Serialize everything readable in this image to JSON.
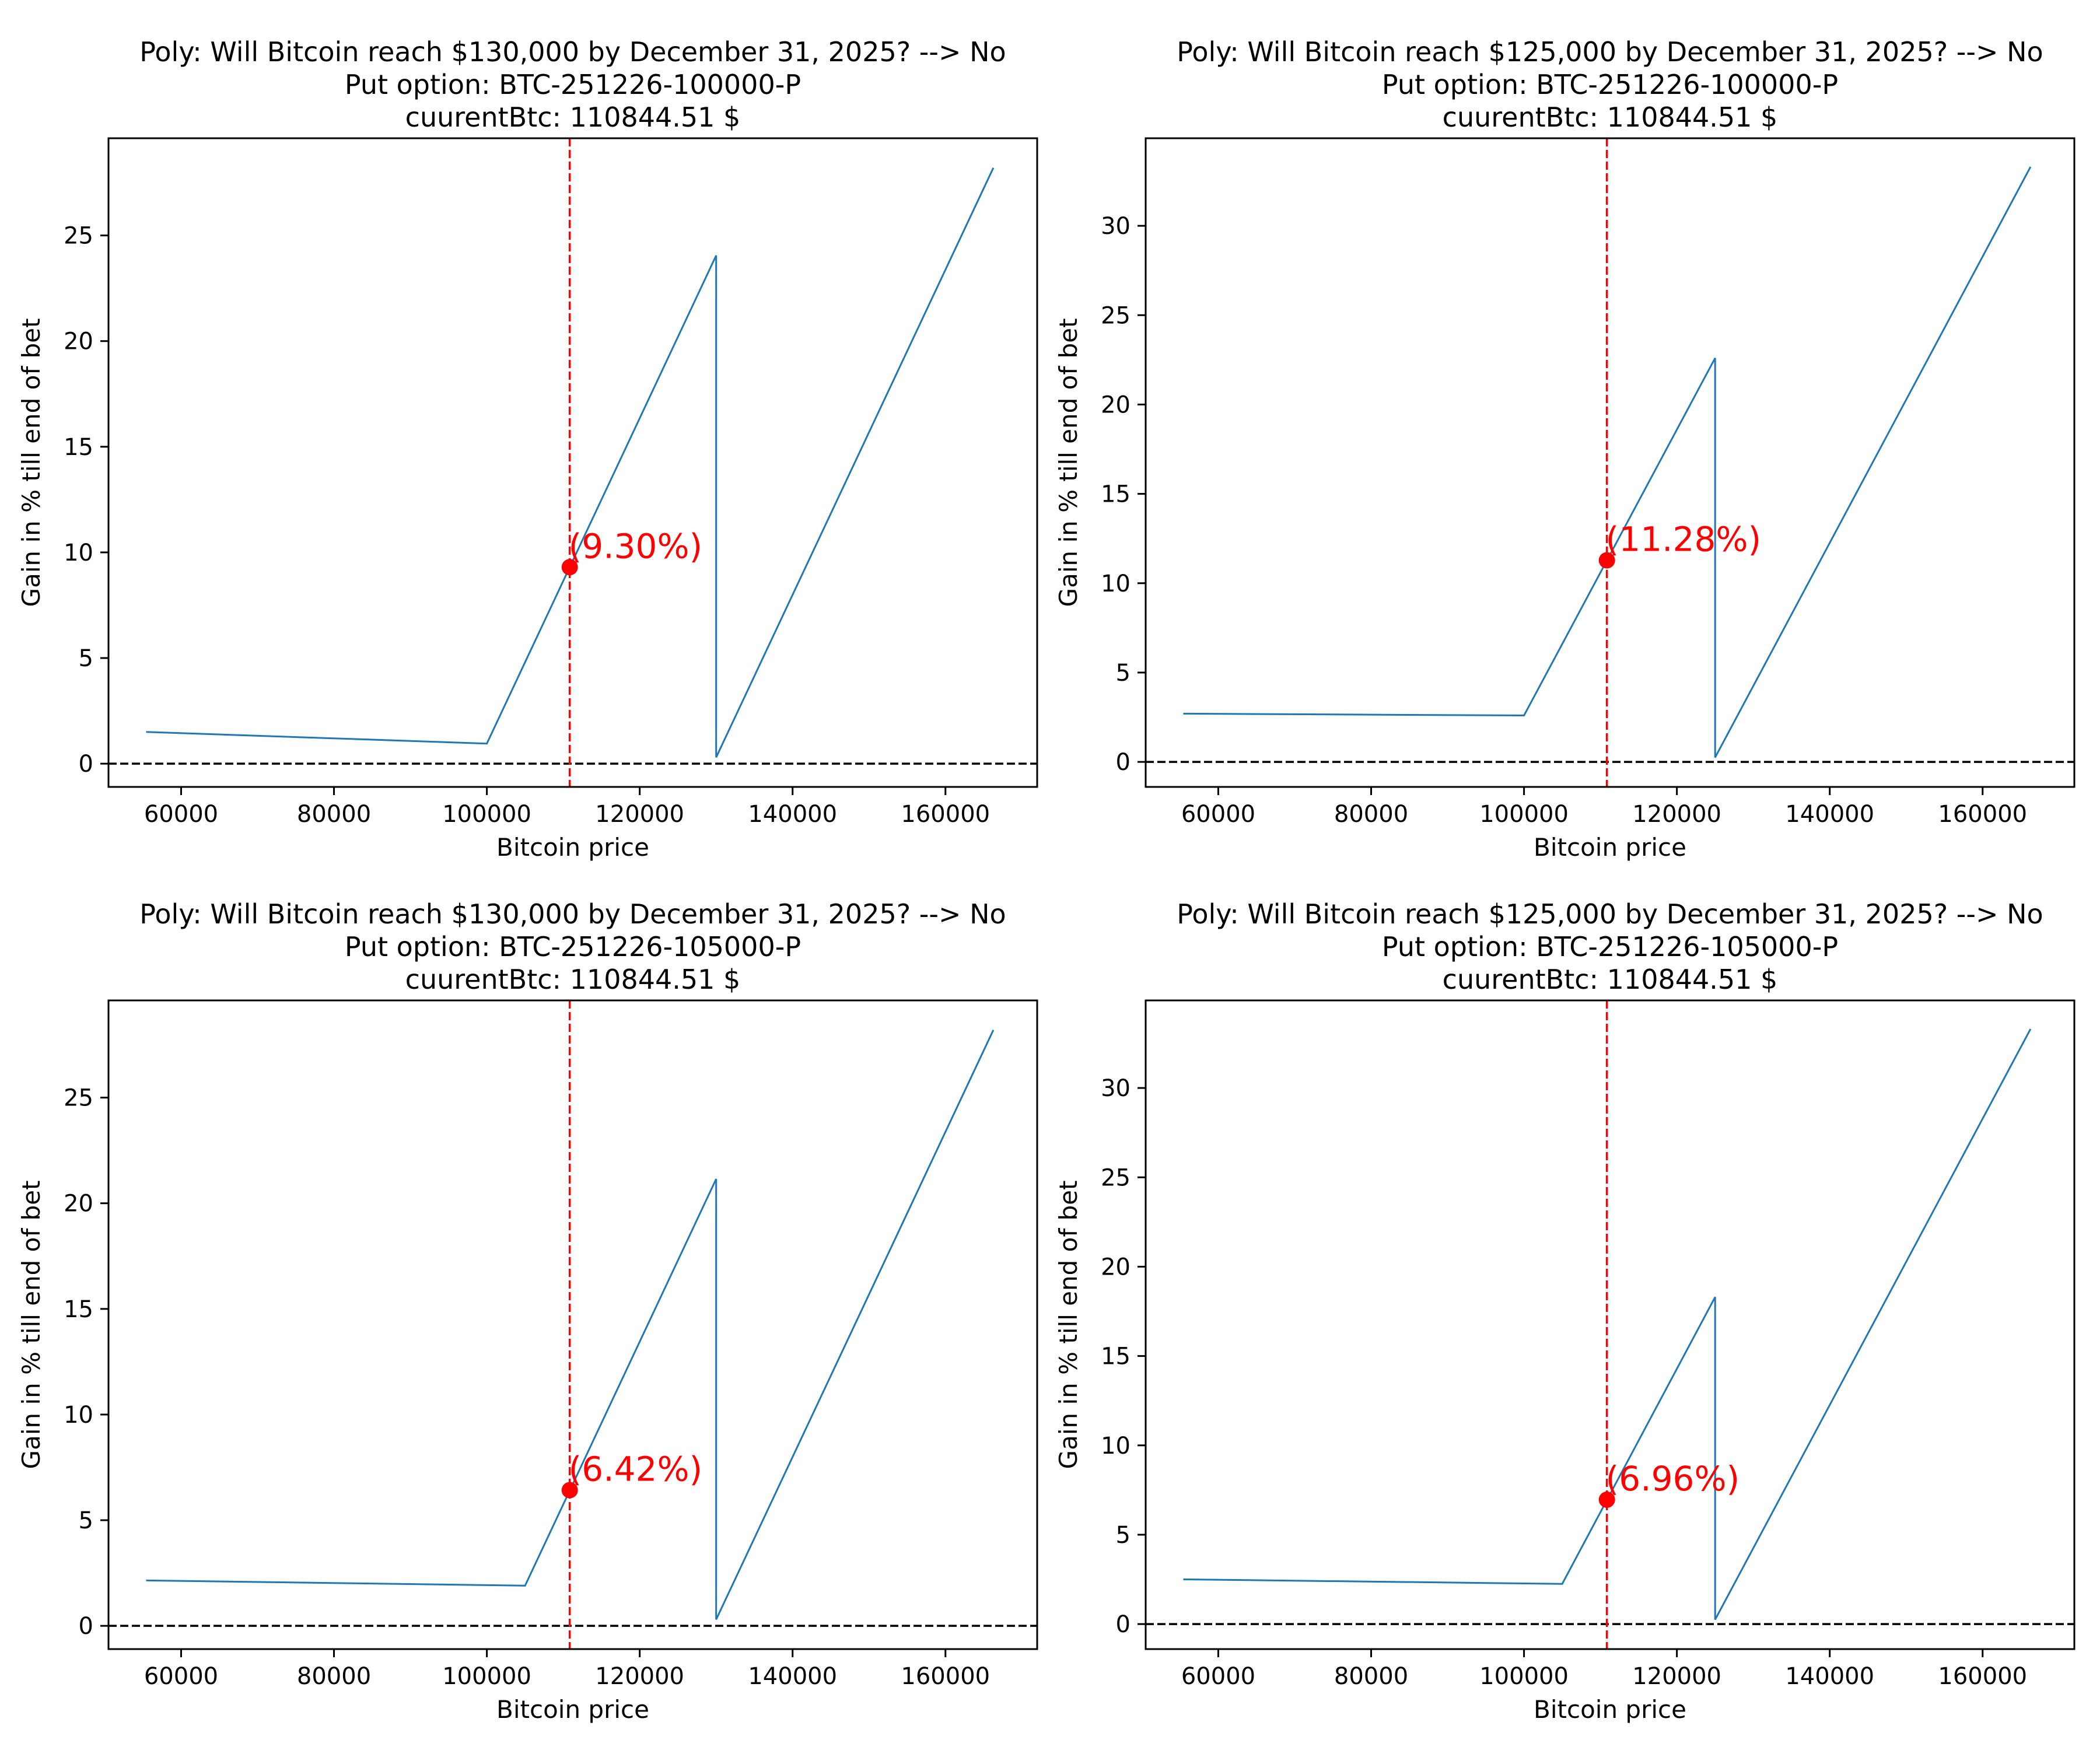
{
  "chart_data": [
    {
      "type": "line",
      "title": [
        "Poly: Will Bitcoin reach $130,000 by December 31, 2025? --> No",
        "Put option: BTC-251226-100000-P",
        "cuurentBtc: 110844.51 $"
      ],
      "xlabel": "Bitcoin price",
      "ylabel": "Gain in % till end of bet",
      "xlim": [
        50500,
        172000
      ],
      "ylim": [
        -1.1,
        29.6
      ],
      "xticks": [
        60000,
        80000,
        100000,
        120000,
        140000,
        160000
      ],
      "yticks": [
        0,
        5,
        10,
        15,
        20,
        25
      ],
      "grid": false,
      "series": [
        {
          "x": [
            55422,
            100000,
            130000,
            130000,
            166267
          ],
          "y": [
            1.5,
            0.95,
            24.05,
            0.3,
            28.2
          ]
        }
      ],
      "current_price": 110844.51,
      "current_gain": 9.3,
      "annotation": "(9.30%)",
      "hline_y": 0
    },
    {
      "type": "line",
      "title": [
        "Poly: Will Bitcoin reach $125,000 by December 31, 2025? --> No",
        "Put option: BTC-251226-100000-P",
        "cuurentBtc: 110844.51 $"
      ],
      "xlabel": "Bitcoin price",
      "ylabel": "Gain in % till end of bet",
      "xlim": [
        50500,
        172000
      ],
      "ylim": [
        -1.4,
        34.9
      ],
      "xticks": [
        60000,
        80000,
        100000,
        120000,
        140000,
        160000
      ],
      "yticks": [
        0,
        5,
        10,
        15,
        20,
        25,
        30
      ],
      "grid": false,
      "series": [
        {
          "x": [
            55422,
            100000,
            125000,
            125000,
            166267
          ],
          "y": [
            2.7,
            2.6,
            22.6,
            0.25,
            33.3
          ]
        }
      ],
      "current_price": 110844.51,
      "current_gain": 11.28,
      "annotation": "(11.28%)",
      "hline_y": 0
    },
    {
      "type": "line",
      "title": [
        "Poly: Will Bitcoin reach $130,000 by December 31, 2025? --> No",
        "Put option: BTC-251226-105000-P",
        "cuurentBtc: 110844.51 $"
      ],
      "xlabel": "Bitcoin price",
      "ylabel": "Gain in % till end of bet",
      "xlim": [
        50500,
        172000
      ],
      "ylim": [
        -1.1,
        29.6
      ],
      "xticks": [
        60000,
        80000,
        100000,
        120000,
        140000,
        160000
      ],
      "yticks": [
        0,
        5,
        10,
        15,
        20,
        25
      ],
      "grid": false,
      "series": [
        {
          "x": [
            55422,
            105000,
            130000,
            130000,
            166267
          ],
          "y": [
            2.15,
            1.9,
            21.15,
            0.3,
            28.2
          ]
        }
      ],
      "current_price": 110844.51,
      "current_gain": 6.42,
      "annotation": "(6.42%)",
      "hline_y": 0
    },
    {
      "type": "line",
      "title": [
        "Poly: Will Bitcoin reach $125,000 by December 31, 2025? --> No",
        "Put option: BTC-251226-105000-P",
        "cuurentBtc: 110844.51 $"
      ],
      "xlabel": "Bitcoin price",
      "ylabel": "Gain in % till end of bet",
      "xlim": [
        50500,
        172000
      ],
      "ylim": [
        -1.4,
        34.9
      ],
      "xticks": [
        60000,
        80000,
        100000,
        120000,
        140000,
        160000
      ],
      "yticks": [
        0,
        5,
        10,
        15,
        20,
        25,
        30
      ],
      "grid": false,
      "series": [
        {
          "x": [
            55422,
            105000,
            125000,
            125000,
            166267
          ],
          "y": [
            2.5,
            2.25,
            18.3,
            0.25,
            33.3
          ]
        }
      ],
      "current_price": 110844.51,
      "current_gain": 6.96,
      "annotation": "(6.96%)",
      "hline_y": 0
    }
  ],
  "colors": {
    "series": "#1f77b4",
    "current": "#ff0000",
    "zero_line": "#000000",
    "axes": "#000000",
    "background": "#ffffff"
  }
}
